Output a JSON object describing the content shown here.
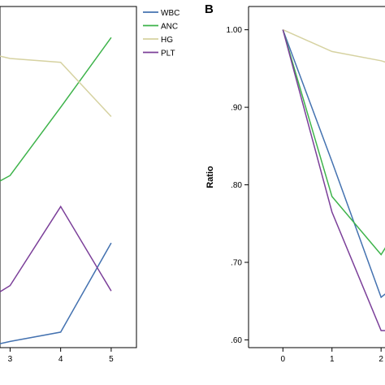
{
  "chart_data": [
    {
      "panel": "",
      "type": "line",
      "title": "",
      "xlabel": "",
      "ylabel": "",
      "xlim": [
        2.8,
        5.5
      ],
      "ylim": [
        0.6,
        1.04
      ],
      "x_ticks": [
        "3",
        "4",
        "5"
      ],
      "legend": "top-right",
      "grid": false,
      "series": [
        {
          "name": "WBC",
          "color": "#4472b0",
          "x": [
            2.8,
            3,
            4,
            5
          ],
          "y": [
            0.605,
            0.608,
            0.62,
            0.735
          ]
        },
        {
          "name": "ANC",
          "color": "#3db34a",
          "x": [
            2.8,
            3,
            4,
            5
          ],
          "y": [
            0.815,
            0.822,
            0.91,
            1.0
          ]
        },
        {
          "name": "HG",
          "color": "#d6d2a1",
          "x": [
            2.8,
            3,
            4,
            5
          ],
          "y": [
            0.976,
            0.973,
            0.968,
            0.898
          ]
        },
        {
          "name": "PLT",
          "color": "#7b3f99",
          "x": [
            2.8,
            3,
            4,
            5
          ],
          "y": [
            0.672,
            0.68,
            0.782,
            0.673
          ]
        }
      ]
    },
    {
      "panel": "B",
      "type": "line",
      "title": "",
      "xlabel": "",
      "ylabel": "Ratio",
      "xlim": [
        -0.7,
        2.08
      ],
      "ylim": [
        0.59,
        1.03
      ],
      "x_ticks": [
        "0",
        "1",
        "2"
      ],
      "y_ticks": [
        "1.00",
        ".90",
        ".80",
        ".70",
        ".60"
      ],
      "grid": false,
      "series": [
        {
          "name": "WBC",
          "color": "#4472b0",
          "x": [
            0,
            1,
            2,
            2.1
          ],
          "y": [
            1.0,
            0.83,
            0.655,
            0.66
          ]
        },
        {
          "name": "ANC",
          "color": "#3db34a",
          "x": [
            0,
            1,
            2,
            2.1
          ],
          "y": [
            1.0,
            0.785,
            0.71,
            0.72
          ]
        },
        {
          "name": "HG",
          "color": "#d6d2a1",
          "x": [
            0,
            1,
            2,
            2.1
          ],
          "y": [
            1.0,
            0.972,
            0.96,
            0.958
          ]
        },
        {
          "name": "PLT",
          "color": "#7b3f99",
          "x": [
            0,
            1,
            2,
            2.1
          ],
          "y": [
            1.0,
            0.765,
            0.612,
            0.612
          ]
        }
      ]
    }
  ]
}
